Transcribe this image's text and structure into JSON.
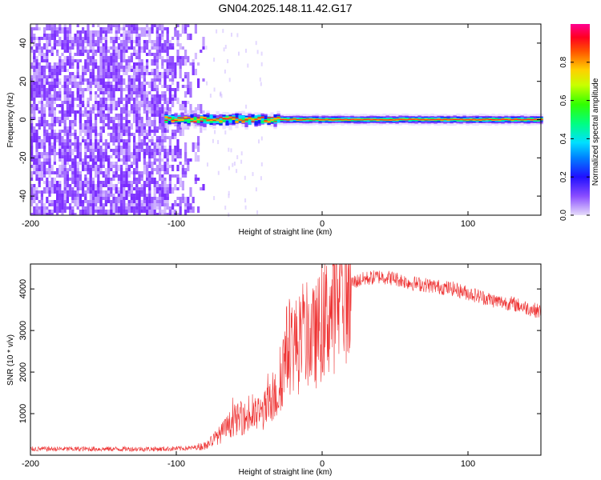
{
  "title": "GN04.2025.148.11.42.G17",
  "colors": {
    "snr_line": "#ee3333",
    "spectro_noise": "#7a2bff",
    "axis": "#000000"
  },
  "chart_data": [
    {
      "type": "heatmap",
      "name": "spectrogram",
      "xlabel": "Height of straight line (km)",
      "ylabel": "Frequency (Hz)",
      "xlim": [
        -200,
        150
      ],
      "ylim": [
        -50,
        50
      ],
      "xticks": [
        -200,
        -100,
        0,
        100
      ],
      "xtick_labels": [
        "-200",
        "-100",
        "0",
        "100"
      ],
      "yticks": [
        -40,
        -20,
        0,
        20,
        40
      ],
      "ytick_labels": [
        "-40",
        "-20",
        "0",
        "20",
        "40"
      ],
      "colorbar": {
        "label": "Normalized spectral amplitude",
        "range": [
          0,
          1
        ],
        "ticks": [
          0.0,
          0.2,
          0.4,
          0.6,
          0.8
        ],
        "tick_labels": [
          "0.0",
          "0.2",
          "0.4",
          "0.6",
          "0.8"
        ]
      },
      "noise_region_x": [
        -200,
        -80
      ],
      "signal_start_x": -108,
      "signal_frequency_hz": 0
    },
    {
      "type": "line",
      "name": "snr",
      "xlabel": "Height of straight line (km)",
      "ylabel": "SNR (10 * v/v)",
      "xlim": [
        -200,
        150
      ],
      "ylim": [
        0,
        4600
      ],
      "xticks": [
        -200,
        -100,
        0,
        100
      ],
      "xtick_labels": [
        "-200",
        "-100",
        "0",
        "100"
      ],
      "yticks": [
        1000,
        2000,
        3000,
        4000
      ],
      "ytick_labels": [
        "1000",
        "2000",
        "3000",
        "4000"
      ],
      "series_envelope": {
        "x": [
          -200,
          -110,
          -90,
          -80,
          -70,
          -60,
          -50,
          -40,
          -30,
          -25,
          -20,
          -15,
          -10,
          -5,
          0,
          5,
          10,
          15,
          20,
          30,
          40,
          50,
          60,
          70,
          80,
          90,
          100,
          110,
          120,
          130,
          140,
          150
        ],
        "y": [
          150,
          150,
          170,
          230,
          500,
          850,
          900,
          1050,
          1500,
          2500,
          2700,
          2600,
          2900,
          2800,
          3200,
          3400,
          3600,
          3900,
          4150,
          4250,
          4300,
          4250,
          4150,
          4100,
          4050,
          4000,
          3900,
          3800,
          3700,
          3650,
          3550,
          3450
        ]
      }
    }
  ]
}
